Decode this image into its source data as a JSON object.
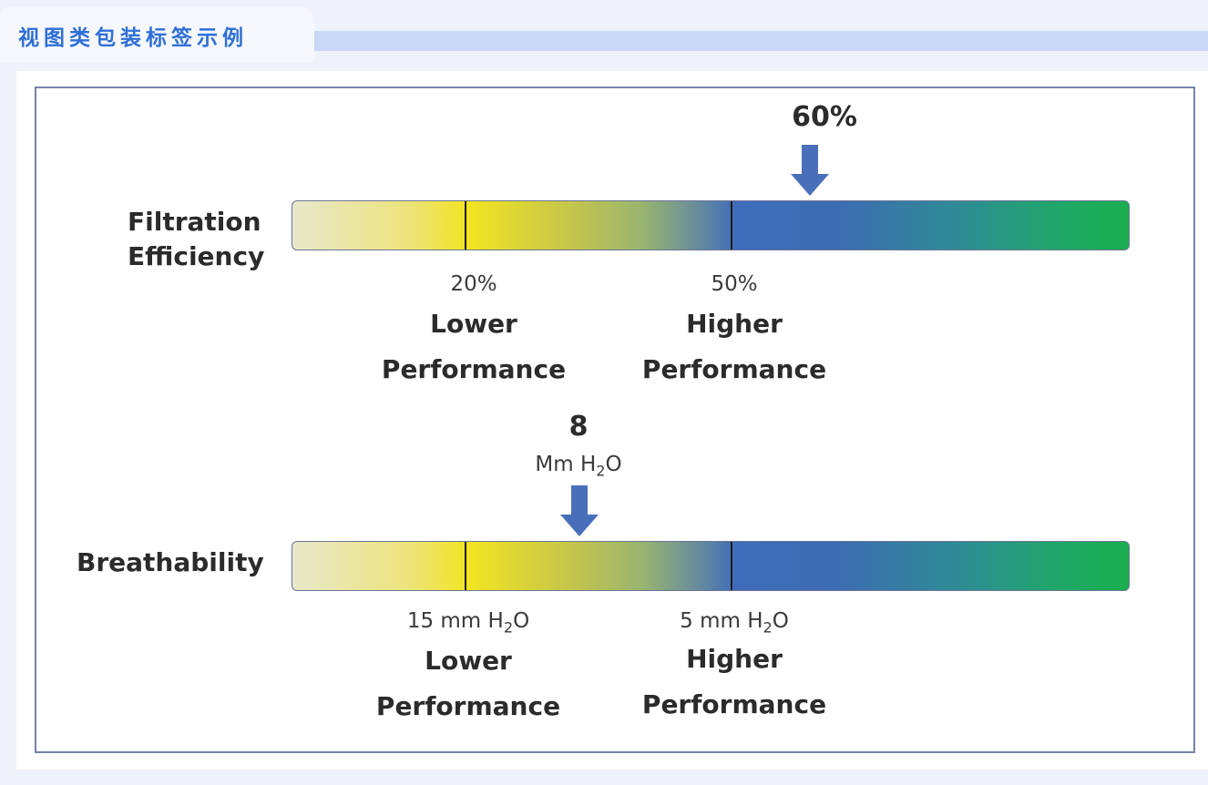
{
  "header": {
    "title": "视图类包装标签示例"
  },
  "rows": [
    {
      "label_line1": "Filtration",
      "label_line2": "Efficiency",
      "value": "60%",
      "value_unit": "",
      "ticks": [
        {
          "label": "20%",
          "sub": "",
          "after": "",
          "perf_line1": "Lower",
          "perf_line2": "Performance"
        },
        {
          "label": "50%",
          "sub": "",
          "after": "",
          "perf_line1": "Higher",
          "perf_line2": "Performance"
        }
      ]
    },
    {
      "label_line1": "Breathability",
      "label_line2": "",
      "value": "8",
      "value_unit_pre": "Mm H",
      "value_unit_sub": "2",
      "value_unit_post": "O",
      "ticks": [
        {
          "label": "15 mm H",
          "sub": "2",
          "after": "O",
          "perf_line1": "Lower",
          "perf_line2": "Performance"
        },
        {
          "label": "5 mm H",
          "sub": "2",
          "after": "O",
          "perf_line1": "Higher",
          "perf_line2": "Performance"
        }
      ]
    }
  ],
  "colors": {
    "accent": "#2e6fd8",
    "arrow": "#4a6fba",
    "header_band": "#c9d8f5"
  },
  "icons": {
    "marker": "down-arrow-icon"
  }
}
